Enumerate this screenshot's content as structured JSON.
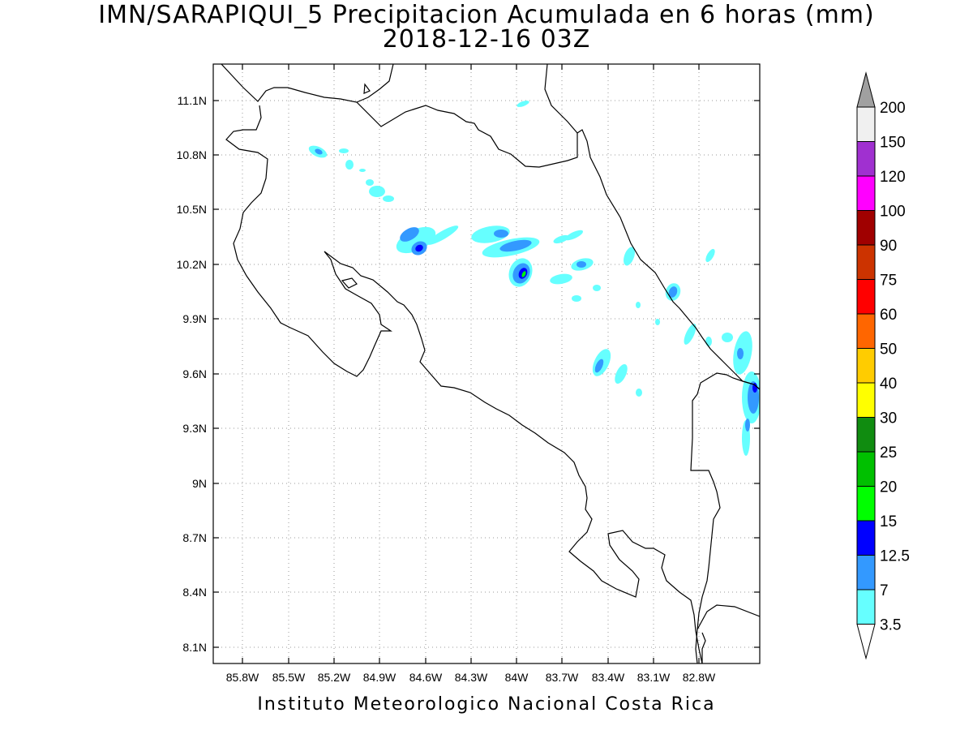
{
  "title_line1": "IMN/SARAPIQUI_5 Precipitacion Acumulada en 6 horas (mm)",
  "title_line2": "2018-12-16 03Z",
  "footer": "Instituto Meteorologico Nacional Costa Rica",
  "map": {
    "lon_range": [
      -86.0,
      -83.0
    ],
    "lat_range": [
      8.0,
      11.3
    ],
    "grid": "dotted",
    "x_ticks": [
      "85.8W",
      "85.5W",
      "85.2W",
      "84.9W",
      "84.6W",
      "84.3W",
      "84W",
      "83.7W",
      "83.4W",
      "83.1W",
      "82.8W"
    ],
    "y_ticks": [
      "11.1N",
      "10.8N",
      "10.5N",
      "10.2N",
      "9.9N",
      "9.6N",
      "9.3N",
      "9N",
      "8.7N",
      "8.4N",
      "8.1N"
    ]
  },
  "colorbar": {
    "levels": [
      "200",
      "150",
      "120",
      "100",
      "90",
      "75",
      "60",
      "50",
      "40",
      "30",
      "25",
      "20",
      "15",
      "12.5",
      "7",
      "3.5"
    ],
    "colors": [
      "#f0f0f0",
      "#a030d0",
      "#ff00ff",
      "#a00000",
      "#cc3300",
      "#ff0000",
      "#ff6600",
      "#ffcc00",
      "#ffff00",
      "#108c10",
      "#00c000",
      "#00ff00",
      "#0000ff",
      "#3399ff",
      "#66ffff"
    ],
    "top_triangle_color": "#a0a0a0",
    "bottom_triangle_color": "#ffffff"
  }
}
